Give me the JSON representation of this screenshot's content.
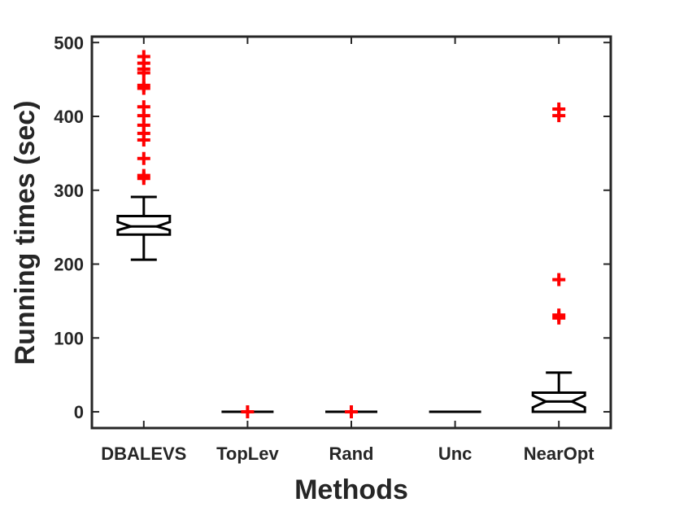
{
  "chart_data": {
    "type": "boxplot",
    "xlabel": "Methods",
    "ylabel": "Running times (sec)",
    "ylim": [
      -22,
      508
    ],
    "yticks": [
      0,
      100,
      200,
      300,
      400,
      500
    ],
    "ytick_labels": [
      "0",
      "100",
      "200",
      "300",
      "400",
      "500"
    ],
    "categories": [
      "DBALEVS",
      "TopLev",
      "Rand",
      "Unc",
      "NearOpt"
    ],
    "boxes": [
      {
        "category": "DBALEVS",
        "whisker_low": 206,
        "q1": 240,
        "median": 251,
        "q3": 265,
        "whisker_high": 291,
        "notch_low": 246,
        "notch_high": 257,
        "outliers": [
          316,
          320,
          343,
          368,
          377,
          388,
          401,
          413,
          438,
          442,
          459,
          464,
          472,
          481
        ]
      },
      {
        "category": "TopLev",
        "whisker_low": 0,
        "q1": 0,
        "median": 0,
        "q3": 0,
        "whisker_high": 0,
        "notch_low": 0,
        "notch_high": 0,
        "outliers": [
          0
        ]
      },
      {
        "category": "Rand",
        "whisker_low": 0,
        "q1": 0,
        "median": 0,
        "q3": 0,
        "whisker_high": 0,
        "notch_low": 0,
        "notch_high": 0,
        "outliers": [
          0
        ]
      },
      {
        "category": "Unc",
        "whisker_low": 0,
        "q1": 0,
        "median": 0,
        "q3": 0,
        "whisker_high": 0,
        "notch_low": 0,
        "notch_high": 0,
        "outliers": []
      },
      {
        "category": "NearOpt",
        "whisker_low": 0,
        "q1": 0,
        "median": 14,
        "q3": 26,
        "whisker_high": 53,
        "notch_low": 6,
        "notch_high": 22,
        "outliers": [
          127,
          131,
          179,
          401,
          410
        ]
      }
    ],
    "colors": {
      "axis": "#262626",
      "box": "#000000",
      "outlier": "#ff0000"
    },
    "grid": false
  }
}
